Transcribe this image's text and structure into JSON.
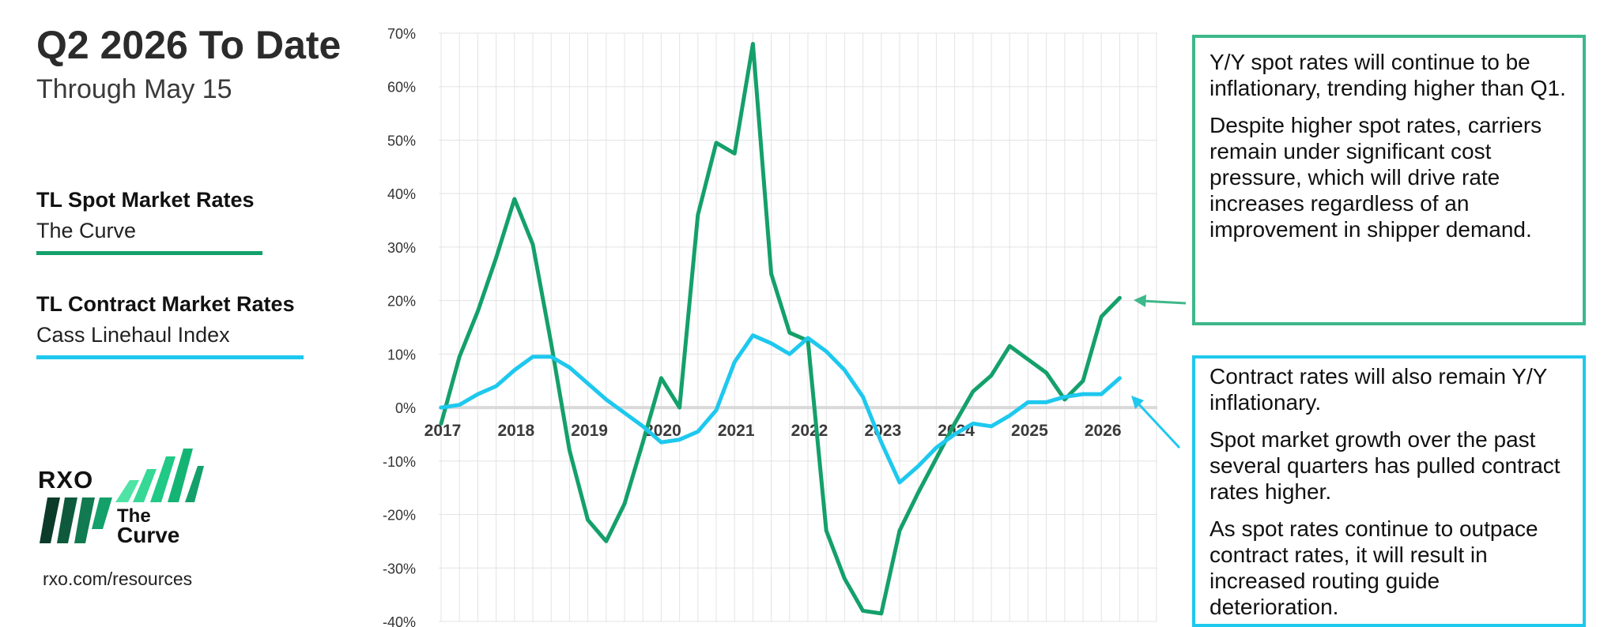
{
  "header": {
    "title": "Q2 2026 To Date",
    "subtitle": "Through May 15"
  },
  "legend": [
    {
      "heading": "TL Spot Market Rates",
      "name": "The Curve",
      "color": "#14a06a"
    },
    {
      "heading": "TL Contract Market Rates",
      "name": "Cass Linehaul Index",
      "color": "#1ec8ee"
    }
  ],
  "branding": {
    "logo": "RXO",
    "curve_the": "The",
    "curve_name": "Curve",
    "website": "rxo.com/resources"
  },
  "colors": {
    "spot": "#14a06a",
    "contract": "#1ec8ee",
    "grid": "#e3e3e3",
    "axis": "#d9d9d9"
  },
  "callouts": {
    "spot": [
      "Y/Y spot rates will continue to be inflationary, trending higher than Q1.",
      "Despite higher spot rates, carriers remain under significant cost pressure, which will drive rate increases regardless of an improvement in shipper demand."
    ],
    "contract": [
      "Contract rates will also remain Y/Y inflationary.",
      "Spot market growth over the past several quarters has pulled contract rates higher.",
      "As spot rates continue to outpace contract rates, it will result in increased routing guide deterioration."
    ]
  },
  "chart_data": {
    "type": "line",
    "title": "",
    "xlabel": "",
    "ylabel": "",
    "x_tick_labels": [
      "2017",
      "2018",
      "2019",
      "2020",
      "2021",
      "2022",
      "2023",
      "2024",
      "2025",
      "2026"
    ],
    "y_tick_labels": [
      "70%",
      "60%",
      "50%",
      "40%",
      "30%",
      "20%",
      "10%",
      "0%",
      "-10%",
      "-20%",
      "-30%",
      "-40%"
    ],
    "ylim": [
      -40,
      70
    ],
    "grid": true,
    "x": [
      "2017 Q1",
      "2017 Q2",
      "2017 Q3",
      "2017 Q4",
      "2018 Q1",
      "2018 Q2",
      "2018 Q3",
      "2018 Q4",
      "2019 Q1",
      "2019 Q2",
      "2019 Q3",
      "2019 Q4",
      "2020 Q1",
      "2020 Q2",
      "2020 Q3",
      "2020 Q4",
      "2021 Q1",
      "2021 Q2",
      "2021 Q3",
      "2021 Q4",
      "2022 Q1",
      "2022 Q2",
      "2022 Q3",
      "2022 Q4",
      "2023 Q1",
      "2023 Q2",
      "2023 Q3",
      "2023 Q4",
      "2024 Q1",
      "2024 Q2",
      "2024 Q3",
      "2024 Q4",
      "2025 Q1",
      "2025 Q2",
      "2025 Q3",
      "2025 Q4",
      "2026 Q1",
      "2026 Q2"
    ],
    "series": [
      {
        "name": "TL Spot Market Rates",
        "values": [
          -3,
          9.5,
          18,
          28,
          39,
          30.5,
          12,
          -8,
          -21,
          -25,
          -18,
          -6.5,
          5.5,
          0,
          36,
          49.5,
          47.5,
          68,
          25,
          14,
          12.5,
          -23,
          -32,
          -38,
          -38.5,
          -23,
          -16,
          -9.5,
          -3,
          3,
          6,
          11.5,
          9,
          6.5,
          1.5,
          5,
          17,
          20.5
        ]
      },
      {
        "name": "TL Contract Market Rates",
        "values": [
          0,
          0.5,
          2.5,
          4,
          7,
          9.5,
          9.5,
          7.5,
          4.5,
          1.5,
          -1,
          -3.5,
          -6.5,
          -6,
          -4.5,
          -0.5,
          8.5,
          13.5,
          12,
          10,
          13,
          10.5,
          7,
          2,
          -6.5,
          -14,
          -11,
          -7.5,
          -5,
          -3,
          -3.5,
          -1.5,
          1,
          1,
          2,
          2.5,
          2.5,
          5.5
        ]
      }
    ]
  }
}
